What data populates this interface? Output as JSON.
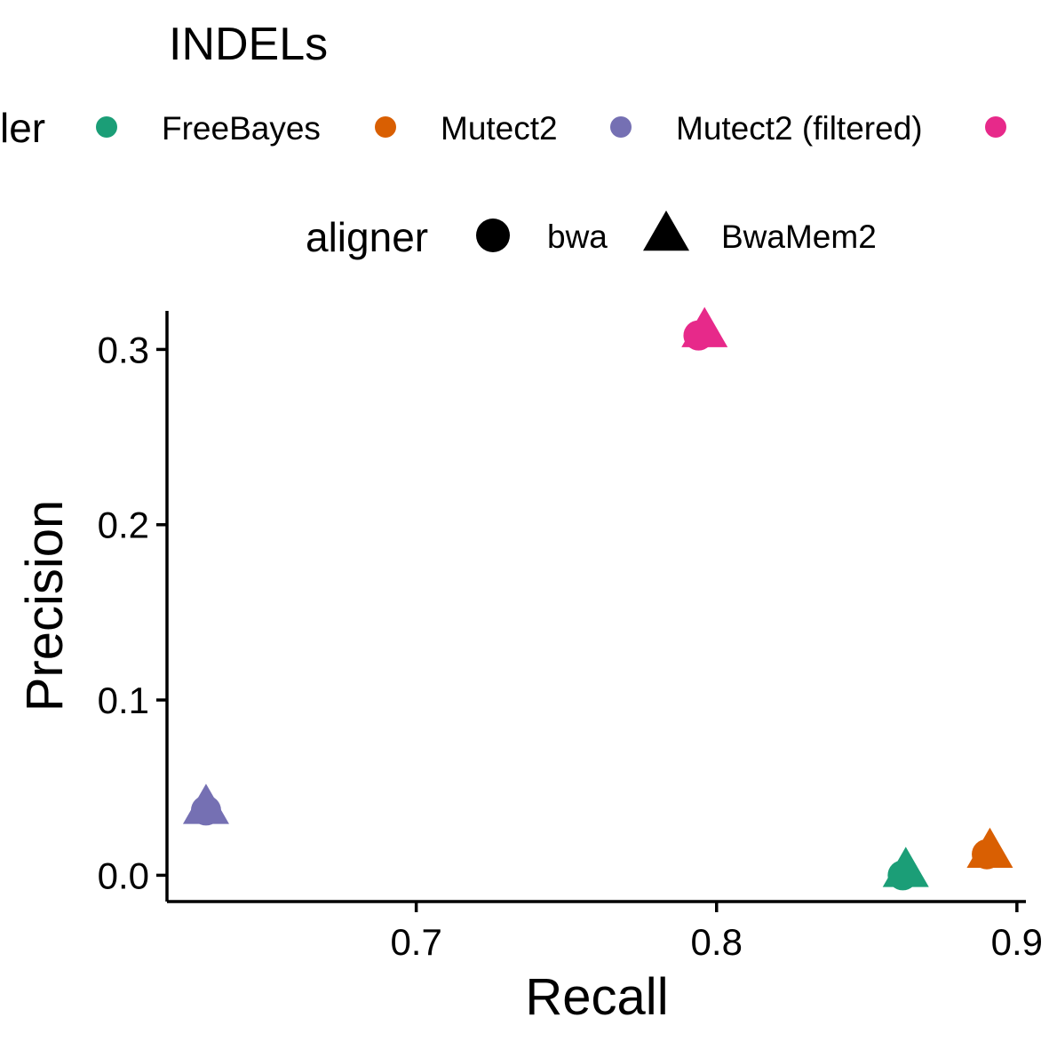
{
  "chart_data": {
    "type": "scatter",
    "title": "INDELs",
    "xlabel": "Recall",
    "ylabel": "Precision",
    "xlim": [
      0.617,
      0.903
    ],
    "ylim": [
      -0.015,
      0.322
    ],
    "x_ticks": [
      0.7,
      0.8,
      0.9
    ],
    "y_ticks": [
      0.0,
      0.1,
      0.2,
      0.3
    ],
    "x_tick_labels": [
      "0.7",
      "0.8",
      "0.9"
    ],
    "y_tick_labels": [
      "0.0",
      "0.1",
      "0.2",
      "0.3"
    ],
    "grid": false,
    "legend_position": "top",
    "color_legend": {
      "title": "ler",
      "entries": [
        {
          "label": "FreeBayes",
          "color": "#1B9E77"
        },
        {
          "label": "Mutect2",
          "color": "#D95F02"
        },
        {
          "label": "Mutect2 (filtered)",
          "color": "#7570B3"
        },
        {
          "label": "",
          "color": "#E7298A"
        }
      ]
    },
    "shape_legend": {
      "title": "aligner",
      "entries": [
        {
          "label": "bwa",
          "shape": "circle"
        },
        {
          "label": "BwaMem2",
          "shape": "triangle"
        }
      ]
    },
    "points": [
      {
        "caller_index": 0,
        "aligner": "bwa",
        "x": 0.862,
        "y": 0.0
      },
      {
        "caller_index": 0,
        "aligner": "BwaMem2",
        "x": 0.863,
        "y": 0.002
      },
      {
        "caller_index": 1,
        "aligner": "bwa",
        "x": 0.89,
        "y": 0.012
      },
      {
        "caller_index": 1,
        "aligner": "BwaMem2",
        "x": 0.891,
        "y": 0.013
      },
      {
        "caller_index": 2,
        "aligner": "bwa",
        "x": 0.63,
        "y": 0.037
      },
      {
        "caller_index": 2,
        "aligner": "BwaMem2",
        "x": 0.63,
        "y": 0.038
      },
      {
        "caller_index": 3,
        "aligner": "bwa",
        "x": 0.794,
        "y": 0.308
      },
      {
        "caller_index": 3,
        "aligner": "BwaMem2",
        "x": 0.796,
        "y": 0.31
      }
    ]
  }
}
